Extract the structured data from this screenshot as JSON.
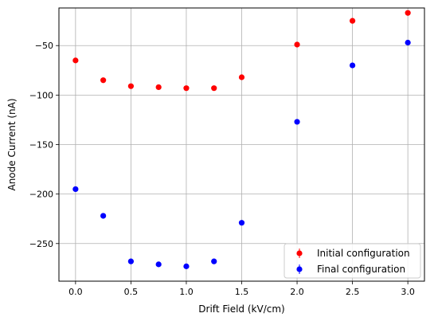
{
  "chart_data": {
    "type": "scatter",
    "title": "",
    "xlabel": "Drift Field (kV/cm)",
    "ylabel": "Anode Current (nA)",
    "xlim": [
      -0.15,
      3.15
    ],
    "ylim": [
      -288,
      -12
    ],
    "xticks": [
      0.0,
      0.5,
      1.0,
      1.5,
      2.0,
      2.5,
      3.0
    ],
    "xtick_labels": [
      "0.0",
      "0.5",
      "1.0",
      "1.5",
      "2.0",
      "2.5",
      "3.0"
    ],
    "yticks": [
      -250,
      -200,
      -150,
      -100,
      -50
    ],
    "ytick_labels": [
      "−250",
      "−200",
      "−150",
      "−100",
      "−50"
    ],
    "grid": true,
    "legend_position": "lower-right",
    "series": [
      {
        "name": "Initial configuration",
        "color": "#ff0000",
        "x": [
          0.0,
          0.25,
          0.5,
          0.75,
          1.0,
          1.25,
          1.5,
          2.0,
          2.5,
          3.0
        ],
        "y": [
          -65,
          -85,
          -91,
          -92,
          -93,
          -93,
          -82,
          -49,
          -25,
          -17
        ]
      },
      {
        "name": "Final configuration",
        "color": "#0000ff",
        "x": [
          0.0,
          0.25,
          0.5,
          0.75,
          1.0,
          1.25,
          1.5,
          2.0,
          2.5,
          3.0
        ],
        "y": [
          -195,
          -222,
          -268,
          -271,
          -273,
          -268,
          -229,
          -127,
          -70,
          -47
        ]
      }
    ]
  }
}
